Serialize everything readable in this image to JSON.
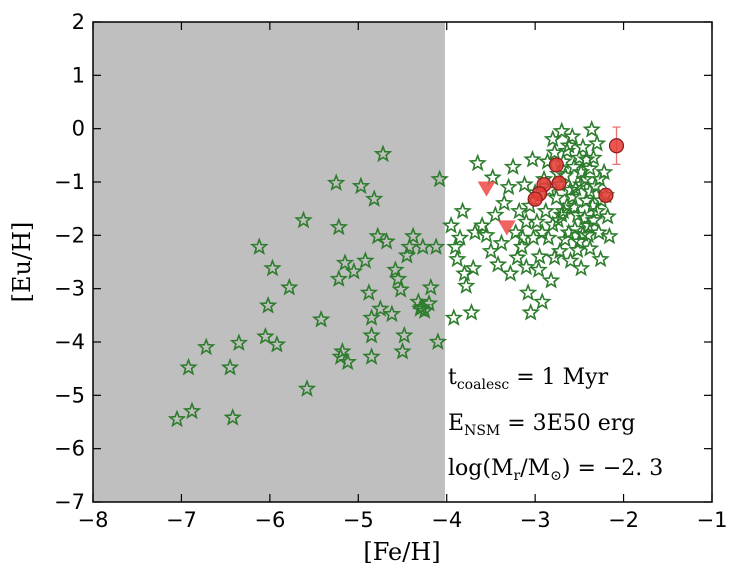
{
  "chart_data": {
    "type": "scatter",
    "xlabel": "[Fe/H]",
    "ylabel": "[Eu/H]",
    "xlim": [
      -8,
      -1
    ],
    "ylim": [
      -7,
      2
    ],
    "x_ticks": [
      "−8",
      "−7",
      "−6",
      "−5",
      "−4",
      "−3",
      "−2",
      "−1"
    ],
    "y_ticks": [
      "2",
      "1",
      "0",
      "−1",
      "−2",
      "−3",
      "−4",
      "−5",
      "−6",
      "−7"
    ],
    "x_tick_values": [
      -8,
      -7,
      -6,
      -5,
      -4,
      -3,
      -2,
      -1
    ],
    "y_tick_values": [
      2,
      1,
      0,
      -1,
      -2,
      -3,
      -4,
      -5,
      -6,
      -7
    ],
    "grid": false,
    "shaded_region": {
      "x_from": -8,
      "x_to": -4.02,
      "color": "#bfbfbf"
    },
    "colors": {
      "stars": "#2e7d2e",
      "observations": "#e53935",
      "errorbars": "#e57373",
      "upper_limits": "#ef5350"
    },
    "annotations": [
      {
        "main": "t",
        "sub": "coalesc",
        "rest": " = 1 Myr"
      },
      {
        "main": "E",
        "sub": "NSM",
        "rest": " = 3E50 erg"
      },
      {
        "main": "log(M",
        "sub": "r",
        "rest": "/M",
        "sub2": "⊙",
        "rest2": ") = −2. 3"
      }
    ],
    "series": [
      {
        "marker": "star",
        "points": [
          [
            -7.05,
            -5.45
          ],
          [
            -6.88,
            -5.3
          ],
          [
            -6.92,
            -4.48
          ],
          [
            -6.72,
            -4.1
          ],
          [
            -6.45,
            -4.48
          ],
          [
            -6.42,
            -5.42
          ],
          [
            -6.35,
            -4.02
          ],
          [
            -6.12,
            -2.22
          ],
          [
            -6.05,
            -3.9
          ],
          [
            -6.02,
            -3.32
          ],
          [
            -5.97,
            -2.62
          ],
          [
            -5.92,
            -4.05
          ],
          [
            -5.78,
            -2.98
          ],
          [
            -5.62,
            -1.72
          ],
          [
            -5.58,
            -4.88
          ],
          [
            -5.42,
            -3.58
          ],
          [
            -5.25,
            -1.02
          ],
          [
            -5.22,
            -1.85
          ],
          [
            -5.22,
            -2.82
          ],
          [
            -5.2,
            -4.28
          ],
          [
            -5.15,
            -2.52
          ],
          [
            -5.12,
            -4.38
          ],
          [
            -5.18,
            -4.18
          ],
          [
            -5.05,
            -2.68
          ],
          [
            -4.97,
            -1.08
          ],
          [
            -4.92,
            -2.48
          ],
          [
            -4.88,
            -3.08
          ],
          [
            -4.85,
            -3.55
          ],
          [
            -4.85,
            -3.88
          ],
          [
            -4.85,
            -4.28
          ],
          [
            -4.82,
            -1.32
          ],
          [
            -4.78,
            -2.02
          ],
          [
            -4.75,
            -3.38
          ],
          [
            -4.72,
            -0.48
          ],
          [
            -4.68,
            -2.12
          ],
          [
            -4.62,
            -3.48
          ],
          [
            -4.58,
            -2.65
          ],
          [
            -4.55,
            -2.82
          ],
          [
            -4.52,
            -3.02
          ],
          [
            -4.5,
            -4.18
          ],
          [
            -4.48,
            -3.88
          ],
          [
            -4.45,
            -2.38
          ],
          [
            -4.42,
            -2.22
          ],
          [
            -4.38,
            -2.02
          ],
          [
            -4.32,
            -3.25
          ],
          [
            -4.3,
            -3.38
          ],
          [
            -4.28,
            -3.35
          ],
          [
            -4.27,
            -2.22
          ],
          [
            -4.25,
            -3.42
          ],
          [
            -4.2,
            -3.28
          ],
          [
            -4.18,
            -2.98
          ],
          [
            -4.12,
            -2.22
          ],
          [
            -4.08,
            -0.95
          ],
          [
            -4.1,
            -4.0
          ],
          [
            -3.95,
            -1.82
          ],
          [
            -3.92,
            -3.55
          ],
          [
            -3.9,
            -2.22
          ],
          [
            -3.88,
            -2.45
          ],
          [
            -3.85,
            -2.05
          ],
          [
            -3.82,
            -1.55
          ],
          [
            -3.8,
            -2.72
          ],
          [
            -3.78,
            -2.95
          ],
          [
            -3.72,
            -3.45
          ],
          [
            -3.7,
            -2.62
          ],
          [
            -3.68,
            -1.95
          ],
          [
            -3.65,
            -0.65
          ],
          [
            -3.6,
            -1.82
          ],
          [
            -3.55,
            -2.0
          ],
          [
            -3.5,
            -2.3
          ],
          [
            -3.48,
            -0.92
          ],
          [
            -3.45,
            -1.62
          ],
          [
            -3.42,
            -2.55
          ],
          [
            -3.38,
            -2.15
          ],
          [
            -3.35,
            -1.4
          ],
          [
            -3.3,
            -1.1
          ],
          [
            -3.28,
            -2.72
          ],
          [
            -3.25,
            -0.72
          ],
          [
            -3.22,
            -1.95
          ],
          [
            -3.2,
            -2.42
          ],
          [
            -3.18,
            -1.55
          ],
          [
            -3.15,
            -2.22
          ],
          [
            -3.12,
            -1.05
          ],
          [
            -3.1,
            -2.6
          ],
          [
            -3.08,
            -3.08
          ],
          [
            -3.05,
            -3.45
          ],
          [
            -3.03,
            -0.58
          ],
          [
            -3.0,
            -1.2
          ],
          [
            -2.98,
            -1.75
          ],
          [
            -2.95,
            -2.4
          ],
          [
            -2.92,
            -3.25
          ],
          [
            -2.9,
            -0.95
          ],
          [
            -2.88,
            -1.55
          ],
          [
            -2.85,
            -2.05
          ],
          [
            -2.82,
            -2.85
          ],
          [
            -2.8,
            -0.2
          ],
          [
            -2.78,
            -0.45
          ],
          [
            -2.76,
            -1.3
          ],
          [
            -2.74,
            -1.72
          ],
          [
            -2.72,
            -2.3
          ],
          [
            -2.7,
            -0.05
          ],
          [
            -2.68,
            -0.62
          ],
          [
            -2.66,
            -0.88
          ],
          [
            -2.64,
            -1.45
          ],
          [
            -2.62,
            -1.95
          ],
          [
            -2.6,
            -2.48
          ],
          [
            -2.58,
            -0.15
          ],
          [
            -2.56,
            -0.72
          ],
          [
            -2.54,
            -1.12
          ],
          [
            -2.52,
            -1.62
          ],
          [
            -2.5,
            -2.12
          ],
          [
            -2.48,
            -2.62
          ],
          [
            -2.46,
            -0.35
          ],
          [
            -2.44,
            -0.95
          ],
          [
            -2.42,
            -1.35
          ],
          [
            -2.4,
            -1.82
          ],
          [
            -2.38,
            -2.25
          ],
          [
            -2.36,
            -0.02
          ],
          [
            -2.34,
            -0.55
          ],
          [
            -2.32,
            -1.08
          ],
          [
            -2.3,
            -1.55
          ],
          [
            -2.28,
            -1.95
          ],
          [
            -2.26,
            -2.45
          ],
          [
            -2.22,
            -0.82
          ],
          [
            -2.2,
            -1.25
          ],
          [
            -2.18,
            -1.65
          ],
          [
            -2.16,
            -2.02
          ],
          [
            -2.62,
            -0.32
          ],
          [
            -2.58,
            -1.28
          ],
          [
            -2.55,
            -1.88
          ],
          [
            -2.5,
            -0.55
          ],
          [
            -2.48,
            -1.05
          ],
          [
            -2.44,
            -1.68
          ],
          [
            -2.4,
            -2.0
          ],
          [
            -2.38,
            -0.75
          ],
          [
            -2.35,
            -1.45
          ],
          [
            -2.3,
            -0.28
          ],
          [
            -2.27,
            -0.95
          ],
          [
            -2.25,
            -1.35
          ],
          [
            -2.72,
            -1.05
          ],
          [
            -2.68,
            -1.55
          ],
          [
            -2.66,
            -2.08
          ],
          [
            -2.64,
            -0.42
          ],
          [
            -2.6,
            -1.15
          ],
          [
            -2.56,
            -1.48
          ],
          [
            -2.52,
            -2.28
          ],
          [
            -2.48,
            -0.82
          ],
          [
            -2.46,
            -1.98
          ],
          [
            -2.42,
            -0.58
          ],
          [
            -2.38,
            -1.18
          ],
          [
            -2.34,
            -1.72
          ],
          [
            -2.84,
            -1.15
          ],
          [
            -2.8,
            -1.8
          ],
          [
            -2.78,
            -2.42
          ],
          [
            -2.74,
            -0.85
          ],
          [
            -2.7,
            -1.62
          ],
          [
            -2.86,
            -0.62
          ],
          [
            -2.92,
            -1.95
          ],
          [
            -2.96,
            -2.65
          ],
          [
            -3.02,
            -2.05
          ],
          [
            -3.06,
            -1.45
          ],
          [
            -3.1,
            -1.75
          ],
          [
            -3.14,
            -2.05
          ]
        ]
      },
      {
        "marker": "circle",
        "points": [
          [
            -2.08,
            -0.32,
            0.35
          ],
          [
            -2.2,
            -1.25,
            0.12
          ],
          [
            -2.73,
            -1.02,
            0.12
          ],
          [
            -2.76,
            -0.68,
            0.12
          ],
          [
            -2.9,
            -1.05,
            0.12
          ],
          [
            -2.95,
            -1.22,
            0.12
          ],
          [
            -3.0,
            -1.32,
            0.12
          ]
        ]
      },
      {
        "marker": "triangle-down",
        "points": [
          [
            -3.55,
            -1.12
          ],
          [
            -3.32,
            -1.85
          ]
        ]
      }
    ]
  }
}
